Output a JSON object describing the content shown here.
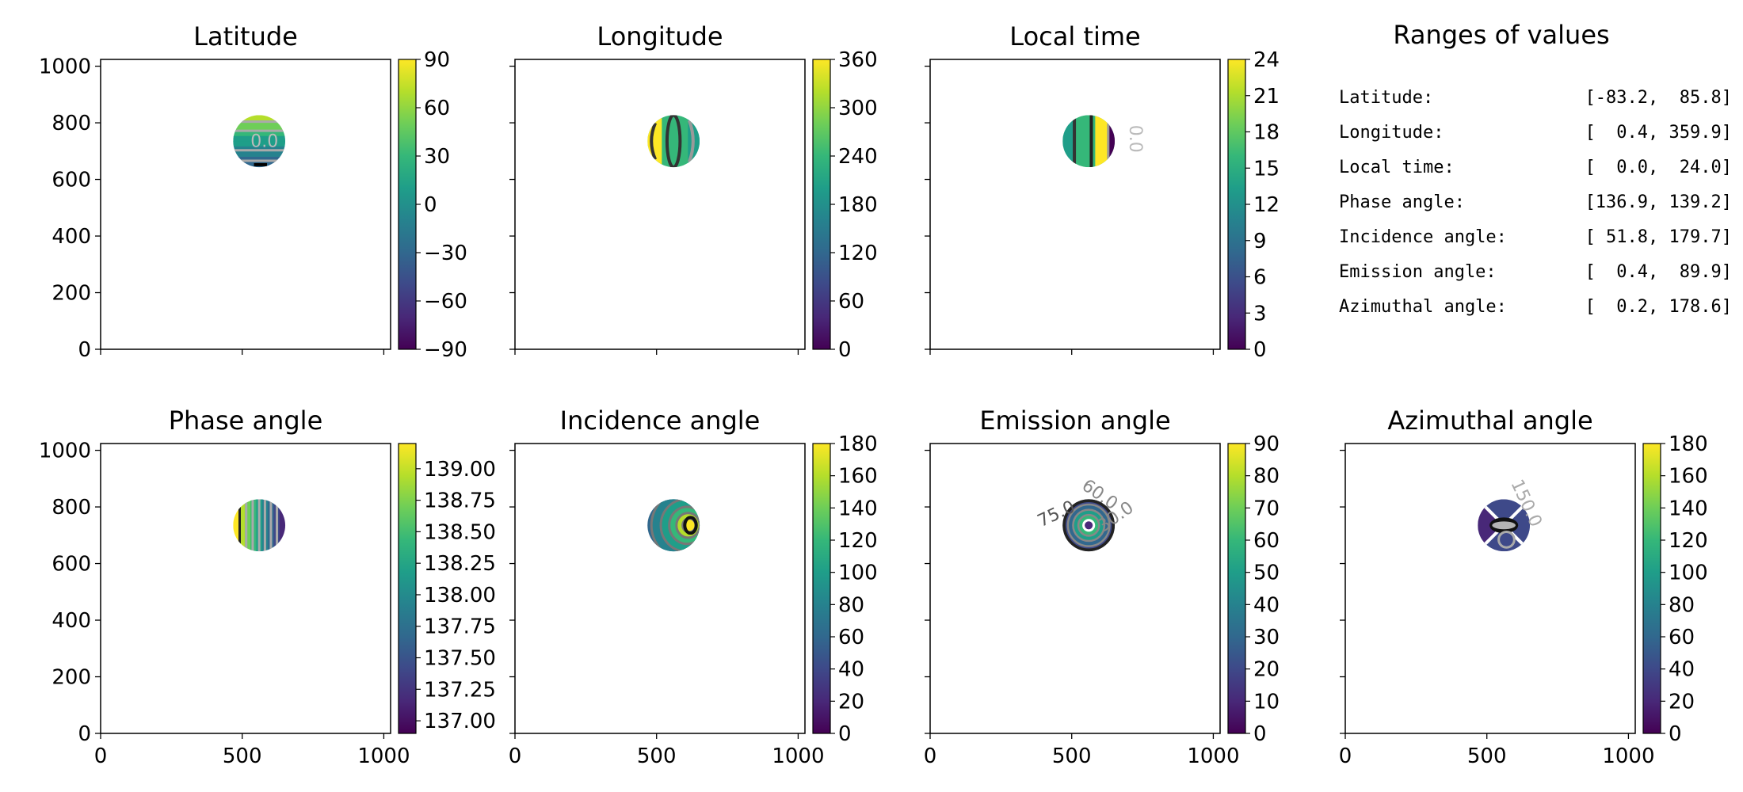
{
  "colormap": [
    "#440154",
    "#482878",
    "#3e4989",
    "#31688e",
    "#26828e",
    "#1f9e89",
    "#35b779",
    "#6ece58",
    "#b5de2b",
    "#fde725"
  ],
  "disk": {
    "center": [
      560,
      735
    ],
    "radius": 92
  },
  "panels": [
    {
      "id": "latitude",
      "title": "Latitude",
      "xlim": [
        0,
        1024
      ],
      "ylim": [
        0,
        1024
      ],
      "xticks": [
        0,
        500,
        1000
      ],
      "yticks": [
        0,
        200,
        400,
        600,
        800,
        1000
      ],
      "cbar": {
        "range": [
          -90,
          90
        ],
        "ticks": [
          90,
          60,
          30,
          0,
          -30,
          -60,
          -90
        ],
        "tick_labels": [
          "90",
          "60",
          "30",
          "0",
          "−30",
          "−60",
          "−90"
        ]
      },
      "contour_labels": [
        "0.0"
      ]
    },
    {
      "id": "longitude",
      "title": "Longitude",
      "xlim": [
        0,
        1024
      ],
      "ylim": [
        0,
        1024
      ],
      "xticks": [
        0,
        500,
        1000
      ],
      "yticks": [
        0,
        200,
        400,
        600,
        800,
        1000
      ],
      "cbar": {
        "range": [
          0,
          360
        ],
        "ticks": [
          360,
          300,
          240,
          180,
          120,
          60,
          0
        ],
        "tick_labels": [
          "360",
          "300",
          "240",
          "180",
          "120",
          "60",
          "0"
        ]
      },
      "contour_labels": []
    },
    {
      "id": "local-time",
      "title": "Local time",
      "xlim": [
        0,
        1024
      ],
      "ylim": [
        0,
        1024
      ],
      "xticks": [
        0,
        500,
        1000
      ],
      "yticks": [
        0,
        200,
        400,
        600,
        800,
        1000
      ],
      "cbar": {
        "range": [
          0,
          24
        ],
        "ticks": [
          24,
          21,
          18,
          15,
          12,
          9,
          6,
          3,
          0
        ],
        "tick_labels": [
          "24",
          "21",
          "18",
          "15",
          "12",
          "9",
          "6",
          "3",
          "0"
        ]
      },
      "contour_labels": [
        "0.0"
      ]
    },
    {
      "id": "phase-angle",
      "title": "Phase angle",
      "xlim": [
        0,
        1024
      ],
      "ylim": [
        0,
        1024
      ],
      "xticks": [
        0,
        500,
        1000
      ],
      "yticks": [
        0,
        200,
        400,
        600,
        800,
        1000
      ],
      "cbar": {
        "range": [
          136.9,
          139.2
        ],
        "ticks": [
          139.0,
          138.75,
          138.5,
          138.25,
          138.0,
          137.75,
          137.5,
          137.25,
          137.0
        ],
        "tick_labels": [
          "139.00",
          "138.75",
          "138.50",
          "138.25",
          "138.00",
          "137.75",
          "137.50",
          "137.25",
          "137.00"
        ]
      },
      "contour_labels": []
    },
    {
      "id": "incidence-angle",
      "title": "Incidence angle",
      "xlim": [
        0,
        1024
      ],
      "ylim": [
        0,
        1024
      ],
      "xticks": [
        0,
        500,
        1000
      ],
      "yticks": [
        0,
        200,
        400,
        600,
        800,
        1000
      ],
      "cbar": {
        "range": [
          0,
          180
        ],
        "ticks": [
          180,
          160,
          140,
          120,
          100,
          80,
          60,
          40,
          20,
          0
        ],
        "tick_labels": [
          "180",
          "160",
          "140",
          "120",
          "100",
          "80",
          "60",
          "40",
          "20",
          "0"
        ]
      },
      "contour_labels": []
    },
    {
      "id": "emission-angle",
      "title": "Emission angle",
      "xlim": [
        0,
        1024
      ],
      "ylim": [
        0,
        1024
      ],
      "xticks": [
        0,
        500,
        1000
      ],
      "yticks": [
        0,
        200,
        400,
        600,
        800,
        1000
      ],
      "cbar": {
        "range": [
          0,
          90
        ],
        "ticks": [
          90,
          80,
          70,
          60,
          50,
          40,
          30,
          20,
          10,
          0
        ],
        "tick_labels": [
          "90",
          "80",
          "70",
          "60",
          "50",
          "40",
          "30",
          "20",
          "10",
          "0"
        ]
      },
      "contour_labels": [
        "75.0",
        "60.0",
        "30.0"
      ]
    },
    {
      "id": "azimuthal-angle",
      "title": "Azimuthal angle",
      "xlim": [
        0,
        1024
      ],
      "ylim": [
        0,
        1024
      ],
      "xticks": [
        0,
        500,
        1000
      ],
      "yticks": [
        0,
        200,
        400,
        600,
        800,
        1000
      ],
      "cbar": {
        "range": [
          0,
          180
        ],
        "ticks": [
          180,
          160,
          140,
          120,
          100,
          80,
          60,
          40,
          20,
          0
        ],
        "tick_labels": [
          "180",
          "160",
          "140",
          "120",
          "100",
          "80",
          "60",
          "40",
          "20",
          "0"
        ]
      },
      "contour_labels": [
        "150.0"
      ]
    }
  ],
  "info": {
    "title": "Ranges of values",
    "rows": [
      {
        "name": "Latitude:",
        "range": "[-83.2,  85.8]"
      },
      {
        "name": "Longitude:",
        "range": "[  0.4, 359.9]"
      },
      {
        "name": "Local time:",
        "range": "[  0.0,  24.0]"
      },
      {
        "name": "Phase angle:",
        "range": "[136.9, 139.2]"
      },
      {
        "name": "Incidence angle:",
        "range": "[ 51.8, 179.7]"
      },
      {
        "name": "Emission angle:",
        "range": "[  0.4,  89.9]"
      },
      {
        "name": "Azimuthal angle:",
        "range": "[  0.2, 178.6]"
      }
    ]
  },
  "chart_data": [
    {
      "type": "heatmap",
      "title": "Latitude",
      "xlim": [
        0,
        1024
      ],
      "ylim": [
        0,
        1024
      ],
      "colorbar_range": [
        -90,
        90
      ],
      "value_range": [
        -83.2,
        85.8
      ]
    },
    {
      "type": "heatmap",
      "title": "Longitude",
      "xlim": [
        0,
        1024
      ],
      "ylim": [
        0,
        1024
      ],
      "colorbar_range": [
        0,
        360
      ],
      "value_range": [
        0.4,
        359.9
      ]
    },
    {
      "type": "heatmap",
      "title": "Local time",
      "xlim": [
        0,
        1024
      ],
      "ylim": [
        0,
        1024
      ],
      "colorbar_range": [
        0,
        24
      ],
      "value_range": [
        0.0,
        24.0
      ]
    },
    {
      "type": "heatmap",
      "title": "Phase angle",
      "xlim": [
        0,
        1024
      ],
      "ylim": [
        0,
        1024
      ],
      "colorbar_range": [
        136.9,
        139.2
      ],
      "value_range": [
        136.9,
        139.2
      ]
    },
    {
      "type": "heatmap",
      "title": "Incidence angle",
      "xlim": [
        0,
        1024
      ],
      "ylim": [
        0,
        1024
      ],
      "colorbar_range": [
        0,
        180
      ],
      "value_range": [
        51.8,
        179.7
      ]
    },
    {
      "type": "heatmap",
      "title": "Emission angle",
      "xlim": [
        0,
        1024
      ],
      "ylim": [
        0,
        1024
      ],
      "colorbar_range": [
        0,
        90
      ],
      "value_range": [
        0.4,
        89.9
      ]
    },
    {
      "type": "heatmap",
      "title": "Azimuthal angle",
      "xlim": [
        0,
        1024
      ],
      "ylim": [
        0,
        1024
      ],
      "colorbar_range": [
        0,
        180
      ],
      "value_range": [
        0.2,
        178.6
      ]
    }
  ]
}
